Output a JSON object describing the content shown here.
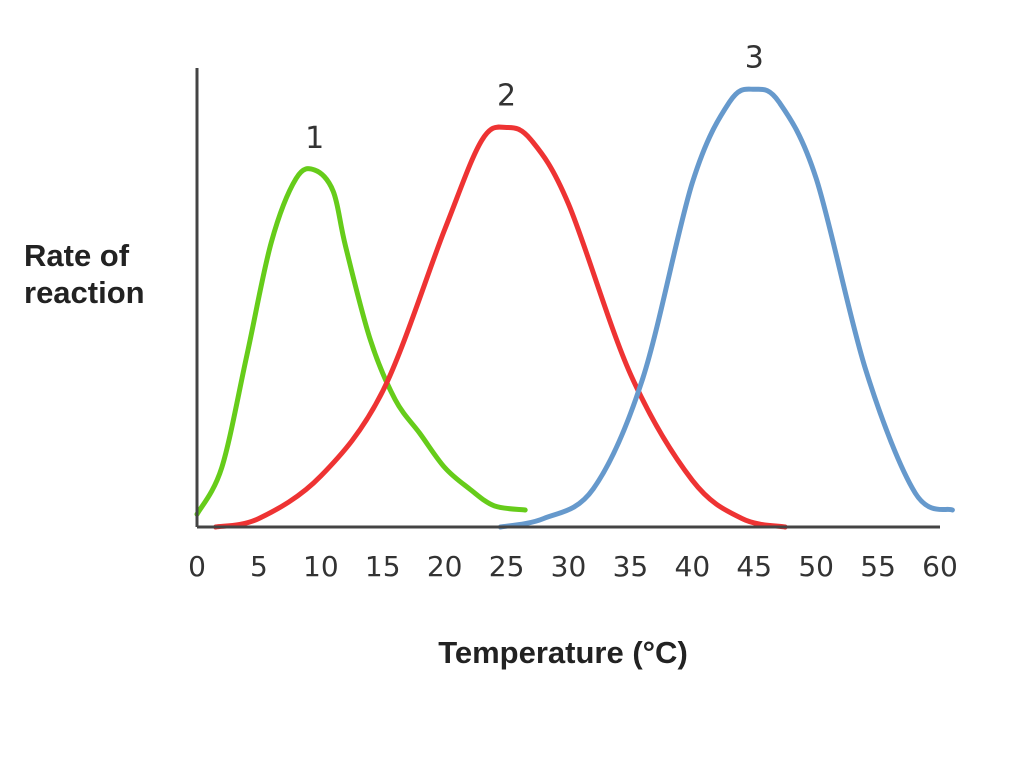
{
  "chart_data": {
    "type": "line",
    "title": "",
    "xlabel": "Temperature (°C)",
    "ylabel_lines": [
      "Rate of",
      "reaction"
    ],
    "xlim": [
      0,
      60
    ],
    "ylim": [
      0,
      100
    ],
    "xticks": [
      "0",
      "5",
      "10",
      "15",
      "20",
      "25",
      "30",
      "35",
      "40",
      "45",
      "50",
      "55",
      "60"
    ],
    "grid": false,
    "series": [
      {
        "name": "1",
        "color": "#66cc1a",
        "x": [
          0,
          2,
          4,
          6,
          8,
          9.5,
          11,
          12,
          14,
          16,
          18,
          20,
          22,
          24,
          26.5
        ],
        "y": [
          3,
          14,
          40,
          67,
          82,
          84,
          79,
          66,
          44,
          30,
          22,
          14,
          9,
          5,
          4
        ]
      },
      {
        "name": "2",
        "color": "#ee3333",
        "x": [
          1.5,
          5,
          10,
          15,
          20,
          23,
          25,
          27,
          30,
          35,
          40,
          44,
          47.5
        ],
        "y": [
          0,
          2,
          12,
          32,
          70,
          91,
          94,
          91,
          76,
          36,
          11,
          2,
          0
        ]
      },
      {
        "name": "3",
        "color": "#6699cc",
        "x": [
          24.5,
          28,
          32,
          36,
          40,
          43,
          45,
          47,
          50,
          54,
          58,
          61
        ],
        "y": [
          0,
          2,
          9,
          35,
          81,
          100,
          103,
          100,
          82,
          37,
          8,
          4
        ]
      }
    ]
  }
}
